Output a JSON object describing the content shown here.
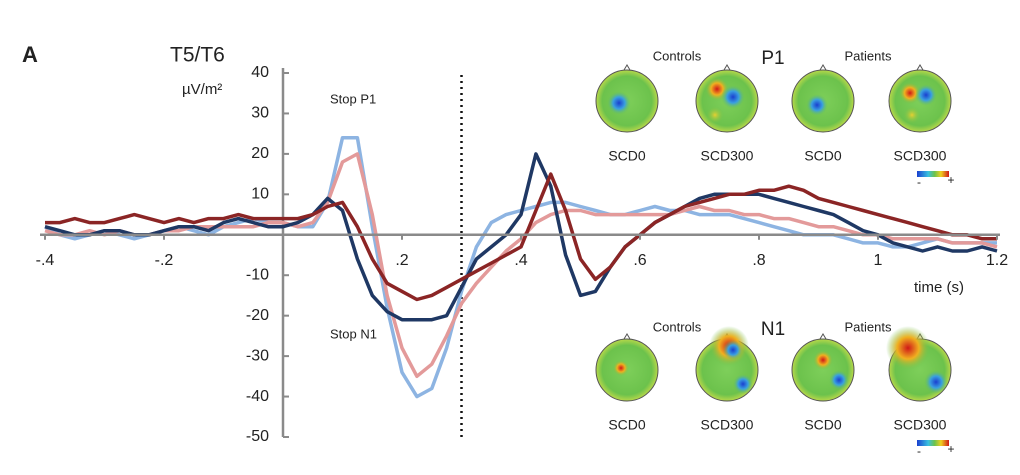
{
  "chart_data": {
    "type": "line",
    "panel_label": "A",
    "title": "T5/T6",
    "y_label": "µV/m²",
    "x_label": "time (s)",
    "annotations": [
      "Stop P1",
      "Stop N1"
    ],
    "vline_x": 0.3,
    "xlim": [
      -0.4,
      1.2
    ],
    "ylim": [
      -50,
      40
    ],
    "xticks": [
      {
        "value": -0.4,
        "label": "-.4"
      },
      {
        "value": -0.2,
        "label": "-.2"
      },
      {
        "value": 0.2,
        "label": ".2"
      },
      {
        "value": 0.4,
        "label": ".4"
      },
      {
        "value": 0.6,
        "label": ".6"
      },
      {
        "value": 0.8,
        "label": ".8"
      },
      1,
      1.2
    ],
    "yticks": [
      40,
      30,
      20,
      10,
      -10,
      -20,
      -30,
      -40,
      -50
    ],
    "x": [
      -0.4,
      -0.375,
      -0.35,
      -0.325,
      -0.3,
      -0.275,
      -0.25,
      -0.225,
      -0.2,
      -0.175,
      -0.15,
      -0.125,
      -0.1,
      -0.075,
      -0.05,
      -0.025,
      0,
      0.025,
      0.05,
      0.075,
      0.1,
      0.125,
      0.15,
      0.175,
      0.2,
      0.225,
      0.25,
      0.275,
      0.3,
      0.325,
      0.35,
      0.375,
      0.4,
      0.425,
      0.45,
      0.475,
      0.5,
      0.525,
      0.55,
      0.575,
      0.6,
      0.625,
      0.65,
      0.675,
      0.7,
      0.725,
      0.75,
      0.775,
      0.8,
      0.825,
      0.85,
      0.875,
      0.9,
      0.925,
      0.95,
      0.975,
      1,
      1.025,
      1.05,
      1.075,
      1.1,
      1.125,
      1.15,
      1.175,
      1.2
    ],
    "series": [
      {
        "color": "#8db4e2",
        "values": [
          2,
          0,
          -1,
          0,
          1,
          0,
          -1,
          0,
          1,
          2,
          1,
          0,
          2,
          3,
          4,
          3,
          3,
          2,
          2,
          8,
          24,
          24,
          2,
          -18,
          -34,
          -40,
          -38,
          -28,
          -14,
          -3,
          3,
          5,
          6,
          7,
          8,
          8,
          7,
          6,
          5,
          5,
          6,
          7,
          6,
          6,
          5,
          5,
          5,
          4,
          3,
          2,
          1,
          0,
          0,
          0,
          -1,
          -2,
          -2,
          -3,
          -3,
          -2,
          -1,
          -2,
          -2,
          -2,
          -2
        ]
      },
      {
        "color": "#e39a9a",
        "values": [
          1,
          0,
          0,
          1,
          0,
          1,
          0,
          0,
          1,
          1,
          2,
          2,
          2,
          2,
          2,
          3,
          3,
          2,
          3,
          8,
          18,
          20,
          5,
          -15,
          -28,
          -35,
          -32,
          -25,
          -17,
          -12,
          -8,
          -4,
          -1,
          3,
          5,
          6,
          6,
          5,
          5,
          5,
          5,
          5,
          5,
          6,
          7,
          6,
          6,
          5,
          5,
          4,
          4,
          3,
          2,
          2,
          1,
          0,
          0,
          -1,
          -1,
          -1,
          -1,
          -2,
          -2,
          -2,
          -3
        ]
      },
      {
        "color": "#1f3864",
        "values": [
          2,
          1,
          0,
          0,
          1,
          1,
          0,
          0,
          1,
          2,
          2,
          1,
          3,
          4,
          3,
          2,
          2,
          3,
          5,
          9,
          6,
          -6,
          -15,
          -19,
          -21,
          -21,
          -21,
          -20,
          -13,
          -6,
          -3,
          0,
          5,
          20,
          12,
          -5,
          -15,
          -14,
          -8,
          -3,
          0,
          3,
          5,
          7,
          9,
          10,
          10,
          10,
          10,
          9,
          8,
          7,
          6,
          5,
          3,
          1,
          0,
          -2,
          -3,
          -4,
          -3,
          -4,
          -4,
          -3,
          -4
        ]
      },
      {
        "color": "#8b2525",
        "values": [
          3,
          3,
          4,
          3,
          3,
          4,
          5,
          4,
          3,
          4,
          3,
          4,
          4,
          5,
          4,
          4,
          4,
          4,
          5,
          7,
          8,
          2,
          -6,
          -12,
          -14,
          -16,
          -15,
          -13,
          -11,
          -9,
          -7,
          -5,
          -3,
          6,
          15,
          6,
          -6,
          -11,
          -8,
          -3,
          0,
          3,
          5,
          7,
          8,
          9,
          10,
          10,
          11,
          11,
          12,
          11,
          9,
          8,
          7,
          6,
          5,
          4,
          3,
          2,
          1,
          0,
          0,
          -1,
          -1
        ]
      }
    ]
  },
  "topomaps": [
    {
      "title": "P1",
      "groups": [
        "Controls",
        "Patients"
      ],
      "maps": [
        "SCD0",
        "SCD300",
        "SCD0",
        "SCD300"
      ],
      "scale": [
        "-",
        "+"
      ]
    },
    {
      "title": "N1",
      "groups": [
        "Controls",
        "Patients"
      ],
      "maps": [
        "SCD0",
        "SCD300",
        "SCD0",
        "SCD300"
      ],
      "scale": [
        "-",
        "+"
      ]
    }
  ]
}
